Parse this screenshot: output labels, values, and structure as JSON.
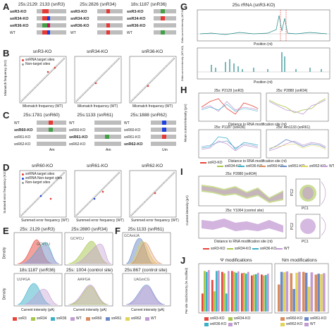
{
  "panels": {
    "A": {
      "letter": "A",
      "titles": [
        "25s:2129: 2133 (snR3)",
        "25s:2826 (snR34)",
        "18s:1187 (snR36)"
      ],
      "rows": [
        [
          "snR3-KO",
          "snR34-KO",
          "snR36-KO",
          "WT"
        ],
        [
          "snR3-KO",
          "snR34-KO",
          "snR36-KO",
          "WT"
        ],
        [
          "snR3-KO",
          "snR34-KO",
          "snR36-KO",
          "WT"
        ]
      ],
      "bold_rows": [
        "snR3-KO",
        "snR34-KO",
        "snR36-KO"
      ]
    },
    "B": {
      "letter": "B",
      "titles": [
        "snR3-KO",
        "snR34-KO",
        "snR36-KO"
      ],
      "ylabel_line1": "Mismatch frequency (KO)",
      "xlabel": "Mismatch frequency (WT)",
      "legend": [
        "snRNA target sites",
        "Non-target sites"
      ]
    },
    "C": {
      "letter": "C",
      "titles": [
        "25s:1781 (snR60)",
        "25s:1133 (snR61)",
        "25s:1888 (snR62)"
      ],
      "rows": [
        [
          "WT",
          "snR60-KO",
          "snR61-KO",
          "snR62-KO"
        ]
      ],
      "bottom_labels": [
        "Am",
        "Am",
        "Um"
      ]
    },
    "D": {
      "letter": "D",
      "titles": [
        "snR60-KO",
        "snR61-KO",
        "snR62-KO"
      ],
      "ylabel_line1": "Summed error frequency (KO)",
      "xlabel": "Summed error frequency (WT)",
      "legend": [
        "snRNA target sites",
        "snRNA Non-target sites",
        "Non-target sites"
      ]
    },
    "E": {
      "letter": "E",
      "titles": [
        "25s: 2129 (snR3)",
        "25s:2880 (snR34)",
        "18s:1187 (snR36)",
        "25s: 1004 (control site)"
      ],
      "motifs": [
        "GCΨCU",
        "GCΨCU",
        "UUΨGA",
        "AAΨGA"
      ],
      "ylabel": "Density",
      "xlabel": "Current intensity (pA)"
    },
    "F": {
      "letter": "F",
      "titles": [
        "25s:1133 (snR61)",
        "25s:867 (control site)"
      ],
      "motifs": [
        "GCAmUA",
        "UAGmCG"
      ]
    },
    "legend_EF": [
      "snR3",
      "snR34",
      "snR36",
      "WT",
      "snR60",
      "snR61",
      "snR62",
      "WT"
    ],
    "G": {
      "letter": "G",
      "title": "25s rRNA (snR3-KO)",
      "ylabel_top": "Delta current intensity (WT-KO)",
      "ylabel_bot": "Delta current intensity (WT-KO)",
      "xlabel": "Position (nt)",
      "xlabel2": "Position (nt)"
    },
    "H": {
      "letter": "H",
      "titles": [
        "25s: P2129 (snR3)",
        "25s: P2880 (snR34)",
        "25s: P1187 (snR36)",
        "25s: Am1133 (snR61)"
      ],
      "ylabel": "Mean current intensity (pA)",
      "xlabel": "Distance to RNA modification site (nt)",
      "legend": [
        "snR3-KO",
        "snR34-KO",
        "snR36-KO",
        "snR60-KO",
        "snR61-KO",
        "snR62-KO",
        "WT"
      ]
    },
    "I": {
      "letter": "I",
      "titles": [
        "25s: P2880 (snR34)",
        "25s: Y1004 (control site)"
      ],
      "ylabel": "Current intensity (pA)",
      "xlabel": "Distance to RNA modification site (nt)",
      "pc": [
        "PC1",
        "PC2"
      ],
      "legend": [
        "snR3-KO",
        "snR34-KO",
        "snR36-KO",
        "WT"
      ]
    },
    "J": {
      "letter": "J",
      "titles": [
        "Ψ modifications",
        "Nm modifications"
      ],
      "ylabel": "Per-site stoichiometry (% modified)",
      "legend_left": [
        "snR3-KO",
        "snR34-KO",
        "snR36-KO",
        "WT"
      ],
      "legend_right": [
        "snR60-KO",
        "snR61-KO",
        "snR62-KO",
        "WT"
      ]
    }
  },
  "colors": {
    "snR3": "#e8443a",
    "snR34": "#a6c64c",
    "snR36": "#3bb0c9",
    "WT": "#c39bd3",
    "snR60": "#d98c5f",
    "snR61": "#6a8ac7",
    "snR62": "#e2d35a",
    "red": "#e53935",
    "green": "#43a047",
    "blue": "#1e40e0",
    "magenta": "#c2185b",
    "grey": "#bdbdbd",
    "teal": "#1f8a8a"
  },
  "chart_data": [
    {
      "type": "line",
      "title": "25s: P2129 (snR3)",
      "series": [
        {
          "name": "snR3-KO",
          "values": [
            82,
            88,
            95,
            86,
            80,
            91,
            87
          ]
        },
        {
          "name": "WT",
          "values": [
            84,
            90,
            78,
            92,
            83,
            89,
            85
          ]
        }
      ]
    },
    {
      "type": "bar",
      "title": "Ψ modifications",
      "series": [
        {
          "name": "snR3-KO",
          "values": [
            40,
            70,
            88,
            90,
            85,
            80,
            82
          ]
        },
        {
          "name": "snR34-KO",
          "values": [
            90,
            45,
            85,
            88,
            86,
            82,
            80
          ]
        },
        {
          "name": "snR36-KO",
          "values": [
            88,
            90,
            40,
            86,
            84,
            83,
            81
          ]
        },
        {
          "name": "WT",
          "values": [
            92,
            91,
            90,
            89,
            88,
            86,
            84
          ]
        }
      ]
    },
    {
      "type": "bar",
      "title": "Nm modifications",
      "series": [
        {
          "name": "snR60-KO",
          "values": [
            60,
            85,
            88,
            82
          ]
        },
        {
          "name": "snR61-KO",
          "values": [
            88,
            50,
            86,
            84
          ]
        },
        {
          "name": "snR62-KO",
          "values": [
            87,
            86,
            55,
            83
          ]
        },
        {
          "name": "WT",
          "values": [
            89,
            88,
            87,
            85
          ]
        }
      ]
    }
  ]
}
